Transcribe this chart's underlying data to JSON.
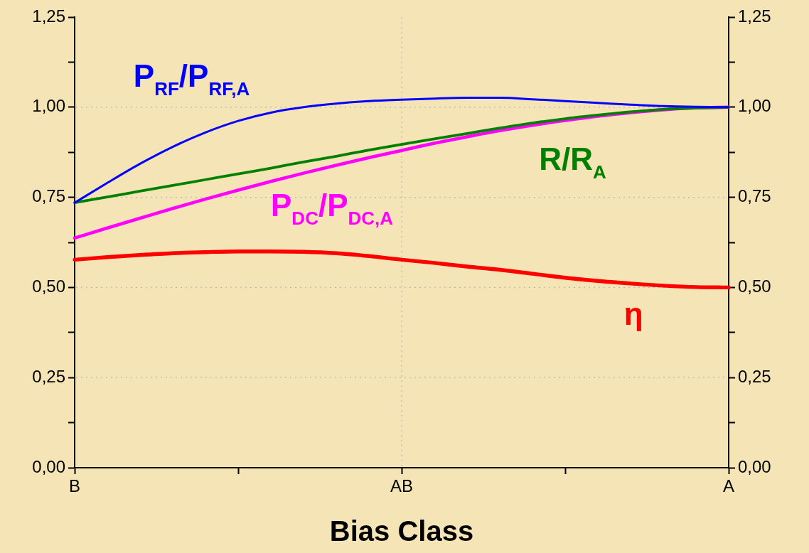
{
  "chart_data": {
    "type": "line",
    "xlabel": "Bias Class",
    "categories": [
      "B",
      null,
      null,
      null,
      null,
      null,
      null,
      null,
      null,
      null,
      "AB",
      null,
      null,
      null,
      null,
      null,
      null,
      null,
      null,
      null,
      "A"
    ],
    "ylim": [
      0,
      1.25
    ],
    "yticks": [
      {
        "value": 0,
        "label": "0,00"
      },
      {
        "value": 0.125,
        "label": null
      },
      {
        "value": 0.25,
        "label": "0,25"
      },
      {
        "value": 0.375,
        "label": null
      },
      {
        "value": 0.5,
        "label": "0,50"
      },
      {
        "value": 0.625,
        "label": null
      },
      {
        "value": 0.75,
        "label": "0,75"
      },
      {
        "value": 0.875,
        "label": null
      },
      {
        "value": 1,
        "label": "1,00"
      },
      {
        "value": 1.125,
        "label": null
      },
      {
        "value": 1.25,
        "label": "1,25"
      }
    ],
    "y2lim": [
      0,
      1.25
    ],
    "y2ticks": [
      {
        "value": 0,
        "label": "0,00"
      },
      {
        "value": 0.125,
        "label": null
      },
      {
        "value": 0.25,
        "label": "0,25"
      },
      {
        "value": 0.375,
        "label": null
      },
      {
        "value": 0.5,
        "label": "0,50"
      },
      {
        "value": 0.625,
        "label": null
      },
      {
        "value": 0.75,
        "label": "0,75"
      },
      {
        "value": 0.875,
        "label": null
      },
      {
        "value": 1,
        "label": "1,00"
      },
      {
        "value": 1.125,
        "label": null
      },
      {
        "value": 1.25,
        "label": "1,25"
      }
    ],
    "grid": true,
    "legend": false,
    "marker": "none",
    "line_style": "solid",
    "series": [
      {
        "name": "P$_{RF}$/P$_{RF,A}$",
        "color": "#0000ff",
        "values": [
          0.735,
          0.79,
          0.843,
          0.89,
          0.93,
          0.962,
          0.985,
          1.0,
          1.01,
          1.017,
          1.021,
          1.024,
          1.026,
          1.026,
          1.022,
          1.017,
          1.012,
          1.007,
          1.003,
          1.001,
          1.0
        ]
      },
      {
        "name": "R/R$_{A}$",
        "color": "#008000",
        "values": [
          0.735,
          0.751,
          0.767,
          0.783,
          0.799,
          0.815,
          0.831,
          0.848,
          0.864,
          0.881,
          0.897,
          0.912,
          0.927,
          0.942,
          0.956,
          0.968,
          0.978,
          0.987,
          0.994,
          0.998,
          1.0
        ]
      },
      {
        "name": "P$_{DC}$/P$_{DC,A}$",
        "color": "#ff00ff",
        "values": [
          0.637,
          0.665,
          0.692,
          0.719,
          0.745,
          0.77,
          0.794,
          0.817,
          0.839,
          0.86,
          0.88,
          0.9,
          0.918,
          0.935,
          0.95,
          0.963,
          0.975,
          0.985,
          0.993,
          0.998,
          1.0
        ]
      },
      {
        "name": "η",
        "color": "#ff0000",
        "values": [
          0.577,
          0.584,
          0.59,
          0.595,
          0.598,
          0.6,
          0.6,
          0.599,
          0.595,
          0.587,
          0.577,
          0.568,
          0.558,
          0.549,
          0.538,
          0.527,
          0.518,
          0.511,
          0.505,
          0.501,
          0.5
        ]
      }
    ]
  }
}
